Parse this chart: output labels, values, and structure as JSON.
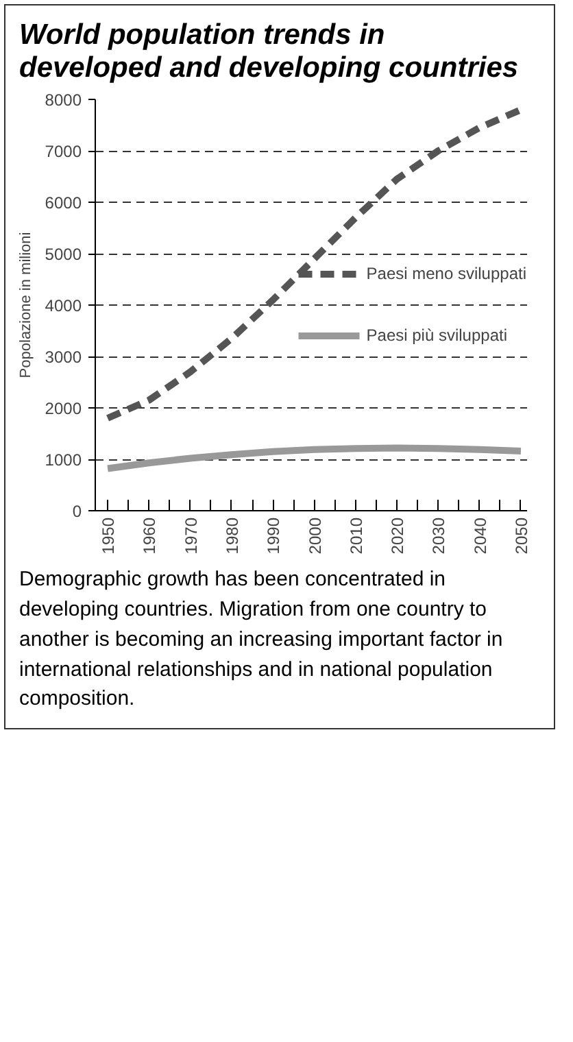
{
  "chart_data": {
    "type": "line",
    "title": "World population trends in developed and developing countries",
    "ylabel": "Popolazione in milioni",
    "x": [
      1950,
      1960,
      1970,
      1980,
      1990,
      2000,
      2010,
      2020,
      2030,
      2040,
      2050
    ],
    "series": [
      {
        "name": "Paesi meno sviluppati",
        "color": "#555555",
        "line_style": "dashed",
        "values": [
          1800,
          2150,
          2700,
          3350,
          4100,
          4900,
          5700,
          6450,
          7000,
          7450,
          7800
        ]
      },
      {
        "name": "Paesi più sviluppati",
        "color": "#999999",
        "line_style": "solid",
        "values": [
          820,
          930,
          1020,
          1090,
          1150,
          1190,
          1210,
          1220,
          1210,
          1190,
          1160
        ]
      }
    ],
    "xlim": [
      1947,
      2051.5
    ],
    "ylim": [
      0,
      8000
    ],
    "xticks": [
      1950,
      {
        "value": 1955,
        "label": null
      },
      1960,
      {
        "value": 1965,
        "label": null
      },
      1970,
      {
        "value": 1975,
        "label": null
      },
      1980,
      {
        "value": 1985,
        "label": null
      },
      1990,
      {
        "value": 1995,
        "label": null
      },
      2000,
      {
        "value": 2005,
        "label": null
      },
      2010,
      {
        "value": 2015,
        "label": null
      },
      2020,
      {
        "value": 2025,
        "label": null
      },
      2030,
      {
        "value": 2035,
        "label": null
      },
      2040,
      {
        "value": 2045,
        "label": null
      },
      2050
    ],
    "yticks": [
      0,
      1000,
      2000,
      3000,
      4000,
      5000,
      6000,
      7000,
      8000
    ],
    "grid": "y",
    "legend": "center right",
    "annotations": [
      "Demographic growth has  been concentrated in developing countries. Migration from one country to another is becoming an increasing important factor in international relationships and in national population composition."
    ]
  }
}
